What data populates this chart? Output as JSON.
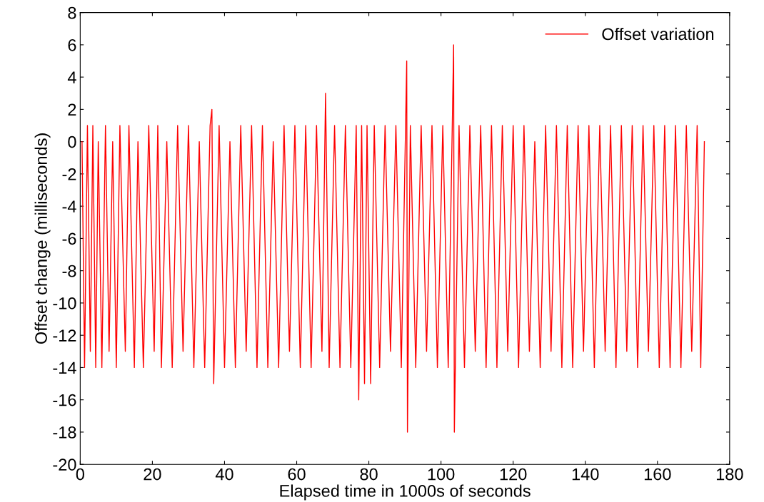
{
  "chart_data": {
    "type": "line",
    "xlabel": "Elapsed time in 1000s of seconds",
    "ylabel": "Offset change (milliseconds)",
    "xlim": [
      0,
      180
    ],
    "xticks": [
      0,
      20,
      40,
      60,
      80,
      100,
      120,
      140,
      160,
      180
    ],
    "ylim": [
      -20,
      8
    ],
    "yticks": [
      -20,
      -18,
      -16,
      -14,
      -12,
      -10,
      -8,
      -6,
      -4,
      -2,
      0,
      2,
      4,
      6,
      8
    ],
    "legend": "top right",
    "grid": false,
    "marker": "none",
    "line_style": "solid",
    "series": [
      {
        "name": "Offset variation",
        "color": "#ff0000",
        "x": [
          0.5,
          1.2,
          2.0,
          2.8,
          3.5,
          4.3,
          5.0,
          6.0,
          7.0,
          8.0,
          9.0,
          10.0,
          11.0,
          12.5,
          13.5,
          15.0,
          16.0,
          17.5,
          19.0,
          20.5,
          21.5,
          22.5,
          24.0,
          25.5,
          27.0,
          28.5,
          30.0,
          31.5,
          33.0,
          34.5,
          36.0,
          36.5,
          37.0,
          38.5,
          40.0,
          41.5,
          43.0,
          44.5,
          46.0,
          47.5,
          49.0,
          50.5,
          52.0,
          53.5,
          55.0,
          56.5,
          58.0,
          59.5,
          61.0,
          62.5,
          64.0,
          65.5,
          67.0,
          68.0,
          69.0,
          70.5,
          72.0,
          73.5,
          75.0,
          76.5,
          77.2,
          78.0,
          78.8,
          79.5,
          80.5,
          81.5,
          83.0,
          84.5,
          86.0,
          87.5,
          89.0,
          90.5,
          90.7,
          91.5,
          93.0,
          94.5,
          96.0,
          97.5,
          99.0,
          100.5,
          102.0,
          103.5,
          103.7,
          105.0,
          106.5,
          108.0,
          109.5,
          111.0,
          112.5,
          114.0,
          115.5,
          117.0,
          118.5,
          120.0,
          121.5,
          123.0,
          124.5,
          126.0,
          127.5,
          129.0,
          130.5,
          132.0,
          133.5,
          135.0,
          136.5,
          138.0,
          139.5,
          141.0,
          142.5,
          144.0,
          145.5,
          147.0,
          148.5,
          150.0,
          151.5,
          153.0,
          154.5,
          156.0,
          157.5,
          159.0,
          160.5,
          162.0,
          163.5,
          165.0,
          166.5,
          168.0,
          169.5,
          171.0,
          172.0,
          173.0
        ],
        "values": [
          0,
          -14,
          1,
          -13,
          1,
          -14,
          0,
          -14,
          1,
          -13,
          0,
          -14,
          1,
          -13,
          1,
          -14,
          0,
          -14,
          1,
          -13,
          1,
          -14,
          0,
          -14,
          1,
          -13,
          1,
          -14,
          0,
          -14,
          1,
          2,
          -15,
          1,
          -14,
          0,
          -14,
          1,
          -13,
          1,
          -14,
          1,
          -14,
          0,
          -14,
          1,
          -13,
          1,
          -14,
          1,
          -14,
          1,
          -13,
          3,
          -14,
          1,
          -14,
          1,
          -14,
          1,
          -16,
          1,
          -15,
          1,
          -15,
          1,
          -14,
          1,
          -13,
          1,
          -14,
          5,
          -18,
          1,
          -14,
          1,
          -13,
          1,
          -14,
          1,
          -14,
          6,
          -18,
          1,
          -14,
          1,
          -13,
          1,
          -14,
          1,
          -14,
          1,
          -13,
          1,
          -14,
          1,
          -13,
          0,
          -14,
          1,
          -13,
          1,
          -14,
          1,
          -14,
          1,
          -13,
          1,
          -14,
          1,
          -13,
          1,
          -14,
          1,
          -13,
          1,
          -14,
          1,
          -13,
          1,
          -14,
          1,
          -14,
          1,
          -14,
          1,
          -13,
          1,
          -14,
          0
        ]
      }
    ]
  }
}
